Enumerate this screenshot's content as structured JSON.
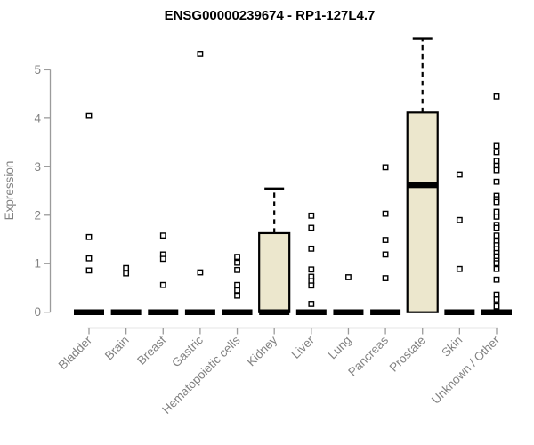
{
  "chart_data": {
    "type": "boxplot",
    "title": "ENSG00000239674 - RP1-127L4.7",
    "xlabel": "",
    "ylabel": "Expression",
    "ylim": [
      0,
      5.7
    ],
    "yticks": [
      0,
      1,
      2,
      3,
      4,
      5
    ],
    "grid": false,
    "legend": "none",
    "colors": {
      "box_fill": "#ece7cd",
      "box_border": "#000000",
      "median": "#000000",
      "outlier_fill": "#ffffff",
      "axis": "#9b9b9b",
      "labels": "#828282",
      "title": "#000000"
    },
    "categories": [
      "Bladder",
      "Brain",
      "Breast",
      "Gastric",
      "Hematopoietic cells",
      "Kidney",
      "Liver",
      "Lung",
      "Pancreas",
      "Prostate",
      "Skin",
      "Unknown / Other"
    ],
    "series": [
      {
        "category": "Bladder",
        "q1": 0,
        "median": 0,
        "q3": 0,
        "whisker_low": 0,
        "whisker_high": 0,
        "outliers": [
          4.05,
          1.55,
          1.11,
          0.86
        ]
      },
      {
        "category": "Brain",
        "q1": 0,
        "median": 0,
        "q3": 0,
        "whisker_low": 0,
        "whisker_high": 0,
        "outliers": [
          0.91,
          0.8
        ]
      },
      {
        "category": "Breast",
        "q1": 0,
        "median": 0,
        "q3": 0,
        "whisker_low": 0,
        "whisker_high": 0,
        "outliers": [
          1.58,
          1.19,
          1.1,
          0.56
        ]
      },
      {
        "category": "Gastric",
        "q1": 0,
        "median": 0,
        "q3": 0,
        "whisker_low": 0,
        "whisker_high": 0,
        "outliers": [
          5.33,
          0.82
        ]
      },
      {
        "category": "Hematopoietic cells",
        "q1": 0,
        "median": 0,
        "q3": 0,
        "whisker_low": 0,
        "whisker_high": 0,
        "outliers": [
          1.14,
          1.02,
          0.87,
          0.56,
          0.45,
          0.34
        ]
      },
      {
        "category": "Kidney",
        "q1": 0,
        "median": 0,
        "q3": 1.63,
        "whisker_low": 0,
        "whisker_high": 2.55,
        "outliers": []
      },
      {
        "category": "Liver",
        "q1": 0,
        "median": 0,
        "q3": 0,
        "whisker_low": 0,
        "whisker_high": 0,
        "outliers": [
          1.99,
          1.74,
          1.31,
          0.88,
          0.73,
          0.64,
          0.55,
          0.17
        ]
      },
      {
        "category": "Lung",
        "q1": 0,
        "median": 0,
        "q3": 0,
        "whisker_low": 0,
        "whisker_high": 0,
        "outliers": [
          0.72
        ]
      },
      {
        "category": "Pancreas",
        "q1": 0,
        "median": 0,
        "q3": 0,
        "whisker_low": 0,
        "whisker_high": 0,
        "outliers": [
          2.99,
          2.03,
          1.49,
          1.19,
          0.7
        ]
      },
      {
        "category": "Prostate",
        "q1": 0,
        "median": 2.62,
        "q3": 4.12,
        "whisker_low": 0,
        "whisker_high": 5.64,
        "outliers": []
      },
      {
        "category": "Skin",
        "q1": 0,
        "median": 0,
        "q3": 0,
        "whisker_low": 0,
        "whisker_high": 0,
        "outliers": [
          2.84,
          1.9,
          0.89
        ]
      },
      {
        "category": "Unknown / Other",
        "q1": 0,
        "median": 0,
        "q3": 0,
        "whisker_low": 0,
        "whisker_high": 0,
        "outliers": [
          4.45,
          3.43,
          3.3,
          3.12,
          3.02,
          2.93,
          2.69,
          2.4,
          2.33,
          2.27,
          2.07,
          1.97,
          1.8,
          1.74,
          1.58,
          1.46,
          1.38,
          1.3,
          1.22,
          1.15,
          1.06,
          1.01,
          0.89,
          0.67,
          0.36,
          0.26,
          0.12
        ]
      }
    ]
  }
}
